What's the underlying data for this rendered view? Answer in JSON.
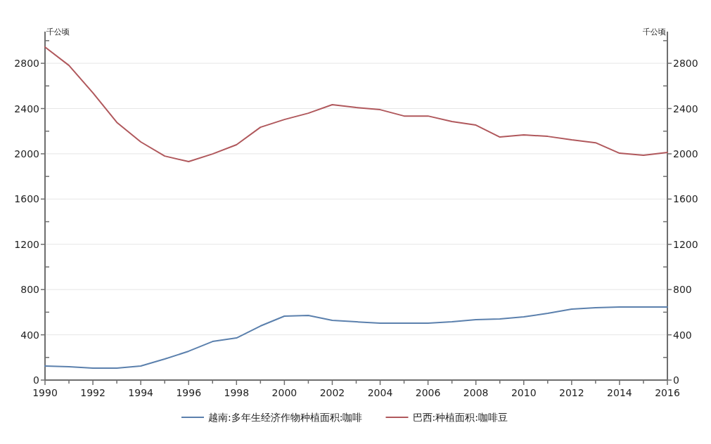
{
  "chart_data": {
    "type": "line",
    "ylabel": "千公顷",
    "y2label": "千公顷",
    "x": [
      1990,
      1991,
      1992,
      1993,
      1994,
      1995,
      1996,
      1997,
      1998,
      1999,
      2000,
      2001,
      2002,
      2003,
      2004,
      2005,
      2006,
      2007,
      2008,
      2009,
      2010,
      2011,
      2012,
      2013,
      2014,
      2015,
      2016
    ],
    "series": [
      {
        "name": "越南:多年生经济作物种植面积:咖啡",
        "color": "#5b80ad",
        "values": [
          124,
          118,
          106,
          106,
          124,
          186,
          255,
          341,
          372,
          478,
          565,
          571,
          528,
          515,
          503,
          503,
          503,
          515,
          534,
          540,
          559,
          590,
          627,
          639,
          646,
          646,
          646
        ]
      },
      {
        "name": "巴西:种植面积:咖啡豆",
        "color": "#b0585c",
        "values": [
          2943,
          2781,
          2539,
          2278,
          2105,
          1980,
          1931,
          1999,
          2080,
          2235,
          2303,
          2359,
          2434,
          2409,
          2390,
          2334,
          2334,
          2285,
          2254,
          2148,
          2167,
          2154,
          2123,
          2098,
          2005,
          1987,
          2012
        ]
      }
    ],
    "xlim": [
      1990,
      2016
    ],
    "xticks": [
      1990,
      {
        "value": 1991,
        "label": null
      },
      1992,
      {
        "value": 1993,
        "label": null
      },
      1994,
      {
        "value": 1995,
        "label": null
      },
      1996,
      {
        "value": 1997,
        "label": null
      },
      1998,
      {
        "value": 1999,
        "label": null
      },
      2000,
      {
        "value": 2001,
        "label": null
      },
      2002,
      {
        "value": 2003,
        "label": null
      },
      2004,
      {
        "value": 2005,
        "label": null
      },
      2006,
      {
        "value": 2007,
        "label": null
      },
      2008,
      {
        "value": 2009,
        "label": null
      },
      2010,
      {
        "value": 2011,
        "label": null
      },
      2012,
      {
        "value": 2013,
        "label": null
      },
      2014,
      {
        "value": 2015,
        "label": null
      },
      2016
    ],
    "ylim": [
      0,
      3080
    ],
    "yticks": [
      0,
      {
        "value": 200,
        "label": null
      },
      400,
      {
        "value": 600,
        "label": null
      },
      800,
      {
        "value": 1000,
        "label": null
      },
      1200,
      {
        "value": 1400,
        "label": null
      },
      1600,
      {
        "value": 1800,
        "label": null
      },
      2000,
      {
        "value": 2200,
        "label": null
      },
      2400,
      {
        "value": 2600,
        "label": null
      },
      2800,
      {
        "value": 3000,
        "label": null
      }
    ],
    "y2lim": [
      0,
      3080
    ],
    "y2ticks": [
      0,
      {
        "value": 200,
        "label": null
      },
      400,
      {
        "value": 600,
        "label": null
      },
      800,
      {
        "value": 1000,
        "label": null
      },
      1200,
      {
        "value": 1400,
        "label": null
      },
      1600,
      {
        "value": 1800,
        "label": null
      },
      2000,
      {
        "value": 2200,
        "label": null
      },
      2400,
      {
        "value": 2600,
        "label": null
      },
      2800,
      {
        "value": 3000,
        "label": null
      }
    ],
    "grid": "y",
    "legend": "bottom",
    "marker": "none",
    "line_style": "solid"
  }
}
